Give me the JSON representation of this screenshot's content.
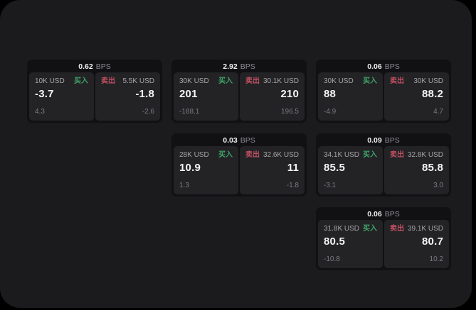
{
  "labels": {
    "bps_unit": "BPS",
    "buy": "买入",
    "sell": "卖出"
  },
  "colors": {
    "buy_green": "#3fa368",
    "sell_red": "#c04f63",
    "page_bg": "#1b1b1d",
    "card_bg": "#111113",
    "panel_bg": "#232326"
  },
  "cards": [
    {
      "bps": "0.62",
      "buy": {
        "amount": "10K USD",
        "value": "-3.7",
        "sub": "4.3"
      },
      "sell": {
        "amount": "5.5K USD",
        "value": "-1.8",
        "sub": "-2.6"
      }
    },
    {
      "bps": "2.92",
      "buy": {
        "amount": "30K USD",
        "value": "201",
        "sub": "-188.1"
      },
      "sell": {
        "amount": "30.1K USD",
        "value": "210",
        "sub": "196.5"
      }
    },
    {
      "bps": "0.06",
      "buy": {
        "amount": "30K USD",
        "value": "88",
        "sub": "-4.9"
      },
      "sell": {
        "amount": "30K USD",
        "value": "88.2",
        "sub": "4.7"
      }
    },
    {
      "bps": "0.03",
      "buy": {
        "amount": "28K USD",
        "value": "10.9",
        "sub": "1.3"
      },
      "sell": {
        "amount": "32.6K USD",
        "value": "11",
        "sub": "-1.8"
      }
    },
    {
      "bps": "0.09",
      "buy": {
        "amount": "34.1K USD",
        "value": "85.5",
        "sub": "-3.1"
      },
      "sell": {
        "amount": "32.8K USD",
        "value": "85.8",
        "sub": "3.0"
      }
    },
    {
      "bps": "0.06",
      "buy": {
        "amount": "31.8K USD",
        "value": "80.5",
        "sub": "-10.8"
      },
      "sell": {
        "amount": "39.1K USD",
        "value": "80.7",
        "sub": "10.2"
      }
    }
  ]
}
